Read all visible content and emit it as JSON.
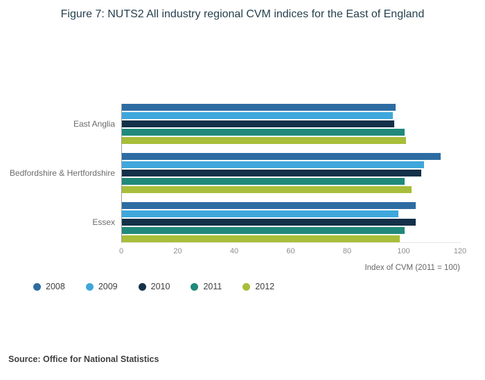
{
  "chart_data": {
    "type": "bar",
    "orientation": "horizontal",
    "title": "Figure 7: NUTS2 All industry regional CVM indices for the East of England",
    "xlabel": "Index of CVM (2011 = 100)",
    "xlim": [
      0,
      120
    ],
    "xticks": [
      0,
      20,
      40,
      60,
      80,
      100,
      120
    ],
    "categories": [
      "East Anglia",
      "Bedfordshire & Hertfordshire",
      "Essex"
    ],
    "series": [
      {
        "name": "2008",
        "color": "#2d6ca2",
        "values": [
          97,
          113,
          104
        ]
      },
      {
        "name": "2009",
        "color": "#3fa7dc",
        "values": [
          96,
          107,
          98
        ]
      },
      {
        "name": "2010",
        "color": "#133149",
        "values": [
          96.5,
          106,
          104
        ]
      },
      {
        "name": "2011",
        "color": "#21897b",
        "values": [
          100,
          100,
          100
        ]
      },
      {
        "name": "2012",
        "color": "#a8bd3a",
        "values": [
          100.5,
          102.5,
          98.5
        ]
      }
    ],
    "legend_position": "bottom-left",
    "grid": false
  },
  "footer": {
    "source": "Source: Office for National Statistics"
  }
}
